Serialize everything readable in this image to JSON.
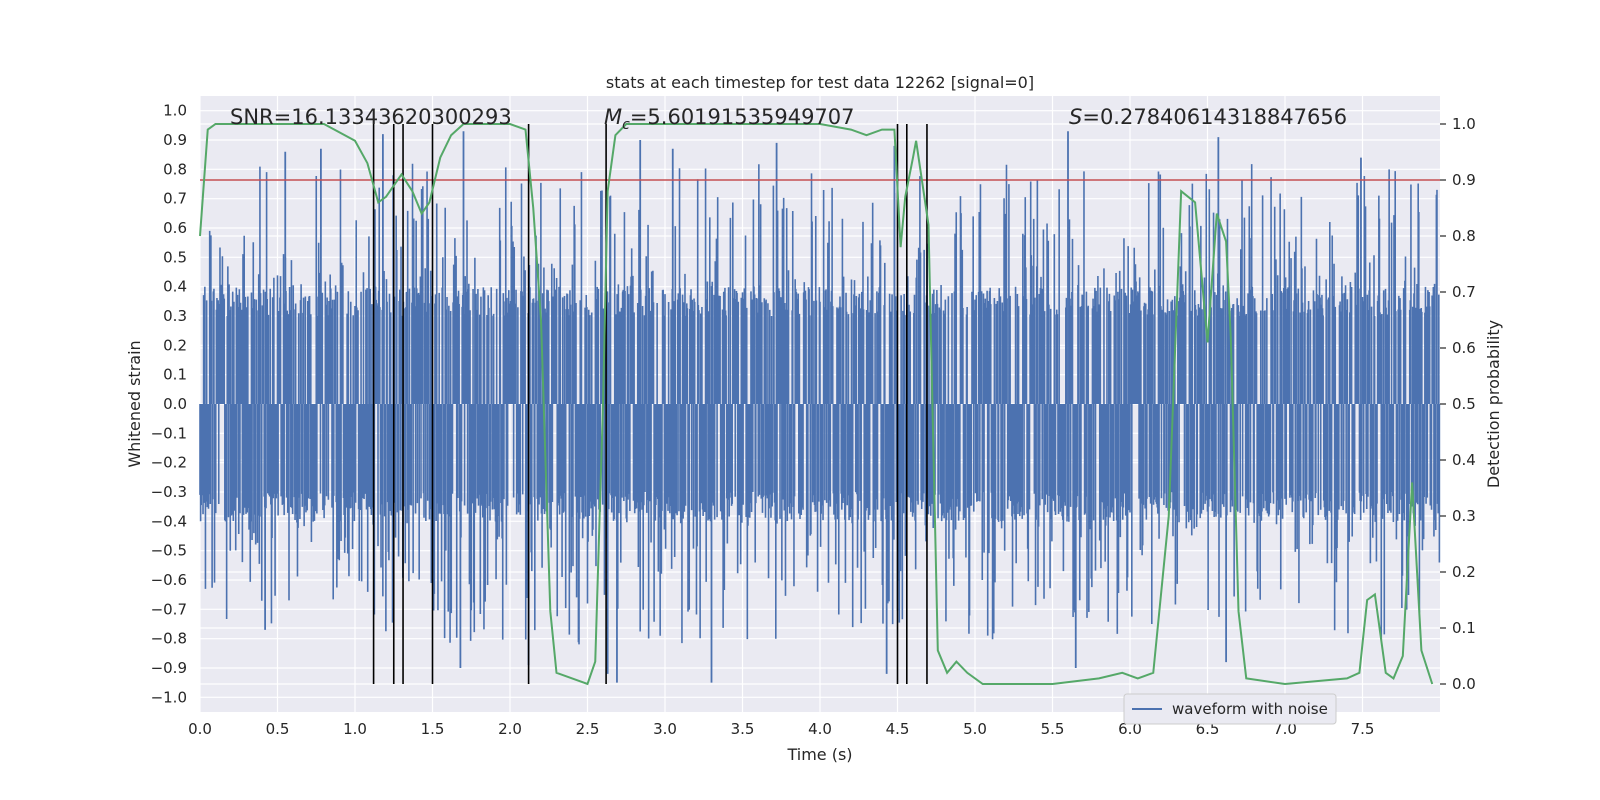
{
  "chart_data": {
    "type": "line",
    "title": "stats at each timestep for test data 12262 [signal=0]",
    "xlabel": "Time (s)",
    "ylabel": "Whitened strain",
    "ylabel_right": "Detection probability",
    "xlim": [
      0.0,
      8.0
    ],
    "ylim": [
      -1.05,
      1.05
    ],
    "ylim_right": [
      -0.05,
      1.05
    ],
    "x_ticks": [
      0.0,
      0.5,
      1.0,
      1.5,
      2.0,
      2.5,
      3.0,
      3.5,
      4.0,
      4.5,
      5.0,
      5.5,
      6.0,
      6.5,
      7.0,
      7.5
    ],
    "x_tick_labels": [
      "0.0",
      "0.5",
      "1.0",
      "1.5",
      "2.0",
      "2.5",
      "3.0",
      "3.5",
      "4.0",
      "4.5",
      "5.0",
      "5.5",
      "6.0",
      "6.5",
      "7.0",
      "7.5"
    ],
    "y_ticks": [
      1.0,
      0.9,
      0.8,
      0.7,
      0.6,
      0.5,
      0.4,
      0.3,
      0.2,
      0.1,
      0.0,
      -0.1,
      -0.2,
      -0.3,
      -0.4,
      -0.5,
      -0.6,
      -0.7,
      -0.8,
      -0.9,
      -1.0
    ],
    "y_tick_labels": [
      "1.0",
      "0.9",
      "0.8",
      "0.7",
      "0.6",
      "0.5",
      "0.4",
      "0.3",
      "0.2",
      "0.1",
      "0.0",
      "−0.1",
      "−0.2",
      "−0.3",
      "−0.4",
      "−0.5",
      "−0.6",
      "−0.7",
      "−0.8",
      "−0.9",
      "−1.0"
    ],
    "y_right_ticks": [
      1.0,
      0.9,
      0.8,
      0.7,
      0.6,
      0.5,
      0.4,
      0.3,
      0.2,
      0.1,
      0.0
    ],
    "y_right_tick_labels": [
      "1.0",
      "0.9",
      "0.8",
      "0.7",
      "0.6",
      "0.5",
      "0.4",
      "0.3",
      "0.2",
      "0.1",
      "0.0"
    ],
    "annotations": {
      "snr": "SNR=16.13343620300293",
      "mc_symbol": "M",
      "mc_sub": "c",
      "mc_value": "=5.60191535949707",
      "s_symbol": "S",
      "s_value": "=0.27840614318847656"
    },
    "threshold_right": 0.9,
    "vertical_lines_x": [
      1.12,
      1.25,
      1.31,
      1.5,
      2.12,
      2.62,
      4.5,
      4.56,
      4.69
    ],
    "vertical_lines_range_right": [
      0.0,
      1.0
    ],
    "legend": {
      "label": "waveform with noise",
      "placement": "lower right"
    },
    "grid": true,
    "series": [
      {
        "name": "waveform with noise",
        "axis": "left",
        "color": "#4c72b0",
        "kind": "noise",
        "duration": 8.0,
        "samples": 2048,
        "band": [
          -0.4,
          0.4
        ],
        "peaks": [
          [
            0.55,
            0.86
          ],
          [
            0.42,
            -0.77
          ],
          [
            0.78,
            0.87
          ],
          [
            1.18,
            0.92
          ],
          [
            1.7,
            0.93
          ],
          [
            1.68,
            -0.9
          ],
          [
            2.12,
            -0.89
          ],
          [
            2.63,
            -0.92
          ],
          [
            2.69,
            -0.95
          ],
          [
            2.84,
            0.9
          ],
          [
            3.05,
            0.87
          ],
          [
            3.3,
            -0.95
          ],
          [
            3.72,
            0.89
          ],
          [
            4.43,
            -0.92
          ],
          [
            4.48,
            0.88
          ],
          [
            5.6,
            0.93
          ],
          [
            5.65,
            -0.9
          ],
          [
            6.57,
            0.91
          ],
          [
            6.62,
            -0.88
          ],
          [
            7.49,
            0.84
          ]
        ]
      },
      {
        "name": "",
        "axis": "right",
        "color": "#55a868",
        "x": [
          0.0,
          0.05,
          0.1,
          0.2,
          0.5,
          0.8,
          1.0,
          1.08,
          1.15,
          1.2,
          1.3,
          1.37,
          1.43,
          1.48,
          1.55,
          1.62,
          1.7,
          1.8,
          2.0,
          2.1,
          2.15,
          2.2,
          2.26,
          2.3,
          2.5,
          2.55,
          2.6,
          2.63,
          2.68,
          2.75,
          3.0,
          3.5,
          4.0,
          4.2,
          4.3,
          4.4,
          4.48,
          4.52,
          4.55,
          4.6,
          4.62,
          4.7,
          4.76,
          4.82,
          4.88,
          4.95,
          5.05,
          5.2,
          5.5,
          5.8,
          5.95,
          6.05,
          6.15,
          6.25,
          6.33,
          6.42,
          6.5,
          6.56,
          6.62,
          6.65,
          6.7,
          6.75,
          7.0,
          7.4,
          7.48,
          7.53,
          7.58,
          7.65,
          7.7,
          7.76,
          7.82,
          7.88,
          7.95
        ],
        "values": [
          0.8,
          0.99,
          1.0,
          1.0,
          1.0,
          1.0,
          0.97,
          0.93,
          0.86,
          0.87,
          0.91,
          0.88,
          0.84,
          0.86,
          0.94,
          0.98,
          1.0,
          1.0,
          1.0,
          0.99,
          0.85,
          0.65,
          0.13,
          0.02,
          0.0,
          0.04,
          0.5,
          0.88,
          0.98,
          1.0,
          1.0,
          1.0,
          1.0,
          0.99,
          0.98,
          0.99,
          0.99,
          0.78,
          0.87,
          0.94,
          0.97,
          0.82,
          0.06,
          0.02,
          0.04,
          0.02,
          0.0,
          0.0,
          0.0,
          0.01,
          0.02,
          0.01,
          0.02,
          0.3,
          0.88,
          0.86,
          0.61,
          0.84,
          0.79,
          0.62,
          0.13,
          0.01,
          0.0,
          0.01,
          0.02,
          0.15,
          0.16,
          0.02,
          0.01,
          0.05,
          0.36,
          0.06,
          0.0
        ]
      }
    ]
  }
}
